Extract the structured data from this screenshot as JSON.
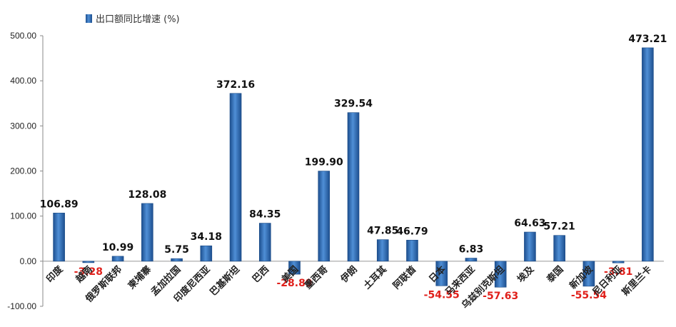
{
  "chart_data": {
    "type": "bar",
    "legend": "出口额同比增速 (%)",
    "legend_position": "top-left",
    "categories": [
      "印度",
      "越南",
      "俄罗斯联邦",
      "柬埔寨",
      "孟加拉国",
      "印度尼西亚",
      "巴基斯坦",
      "巴西",
      "美国",
      "墨西哥",
      "伊朗",
      "土耳其",
      "阿联酋",
      "日本",
      "马来西亚",
      "乌兹别克斯坦",
      "埃及",
      "泰国",
      "新加坡",
      "尼日利亚",
      "斯里兰卡"
    ],
    "values": [
      106.89,
      -3.28,
      10.99,
      128.08,
      5.75,
      34.18,
      372.16,
      84.35,
      -28.89,
      199.9,
      329.54,
      47.85,
      46.79,
      -54.55,
      6.83,
      -57.63,
      64.63,
      57.21,
      -55.54,
      -3.81,
      473.21
    ],
    "value_labels": [
      "106.89",
      "-3.28",
      "10.99",
      "128.08",
      "5.75",
      "34.18",
      "372.16",
      "84.35",
      "-28.89",
      "199.90",
      "329.54",
      "47.85",
      "46.79",
      "-54.55",
      "6.83",
      "-57.63",
      "64.63",
      "57.21",
      "-55.54",
      "-3.81",
      "473.21"
    ],
    "yticks": [
      "500.00",
      "400.00",
      "300.00",
      "200.00",
      "100.00",
      "0.00",
      "-100.00"
    ],
    "ylim": [
      -100,
      500
    ],
    "bar_color": "#2e6db4",
    "negative_label_color": "#e0201b",
    "positive_label_color": "#111111",
    "grid": false
  }
}
